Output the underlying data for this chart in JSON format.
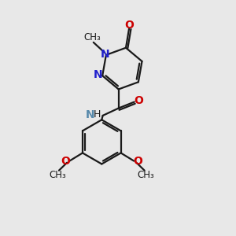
{
  "bg_color": "#e8e8e8",
  "bond_color": "#1a1a1a",
  "N_color": "#2020cc",
  "O_color": "#cc0000",
  "NH_color": "#5588aa",
  "bond_width": 1.6,
  "dbo": 0.06,
  "xlim": [
    0,
    10
  ],
  "ylim": [
    0,
    11
  ]
}
